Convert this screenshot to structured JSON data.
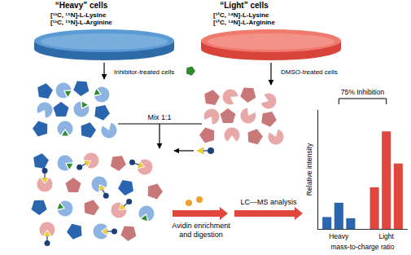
{
  "heavy_cells": {
    "title": "“Heavy” cells",
    "media": [
      "[¹³C, ¹⁵N]-L-Lysine",
      "[¹³C, ¹⁵N]-L-Arginine"
    ],
    "treatment": "Inhibitor-treated cells"
  },
  "light_cells": {
    "title": "“Light” cells",
    "media": [
      "[¹²C, ¹⁴N]-L-Lysine",
      "[¹²C, ¹⁴N]-L-Arginine"
    ],
    "treatment": "DMSO-treated cells"
  },
  "mix": "Mix 1:1",
  "steps": [
    "Avidin enrichment and digestion",
    "LC—MS analysis"
  ],
  "chart_data": {
    "type": "bar",
    "y_label": "Relative intensity",
    "x_label": "mass-to-charge ratio",
    "annotation": "75% Inhibition",
    "series": [
      {
        "name": "Heavy",
        "color": "#2a66b0",
        "values": [
          0.1,
          0.22,
          0.09
        ]
      },
      {
        "name": "Light",
        "color": "#e0463c",
        "values": [
          0.35,
          0.82,
          0.55
        ]
      }
    ],
    "ylim": [
      0,
      1
    ],
    "tick_labels": false,
    "grid": false
  }
}
